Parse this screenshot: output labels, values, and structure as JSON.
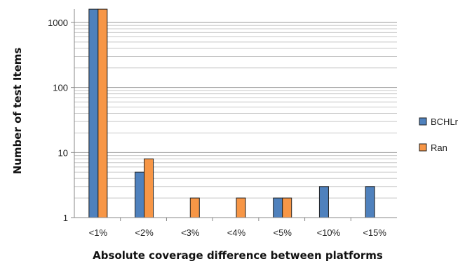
{
  "chart_data": {
    "type": "bar",
    "title": "",
    "xlabel": "Absolute coverage difference between platforms",
    "ylabel": "Number of test Items",
    "y_scale": "log",
    "ylim": [
      1,
      2000
    ],
    "y_ticks": [
      1,
      10,
      100,
      1000
    ],
    "y_tick_labels": [
      "1",
      "10",
      "100",
      "1000"
    ],
    "grid": true,
    "legend_position": "right",
    "categories": [
      "<1%",
      "<2%",
      "<3%",
      "<4%",
      "<5%",
      "<10%",
      "<15%"
    ],
    "series": [
      {
        "name": "BCHLr",
        "color": "#4F81BD",
        "values": [
          1600,
          5,
          null,
          null,
          2,
          3,
          3
        ]
      },
      {
        "name": "Ran",
        "color": "#F79646",
        "values": [
          1600,
          8,
          2,
          2,
          2,
          null,
          null
        ]
      }
    ]
  }
}
